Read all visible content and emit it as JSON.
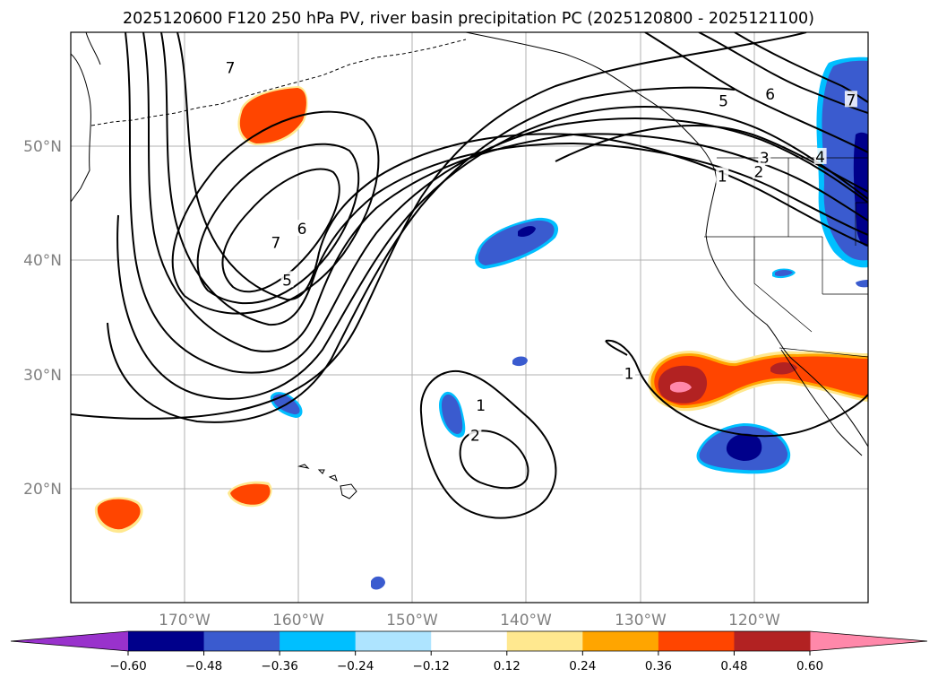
{
  "title": "2025120600 F120 250 hPa PV, river basin precipitation PC (2025120800 - 2025121100)",
  "map": {
    "lon_range": [
      -180,
      -110
    ],
    "lat_range": [
      10,
      60
    ],
    "lat_labels": [
      {
        "lat": 50,
        "text": "50°N"
      },
      {
        "lat": 40,
        "text": "40°N"
      },
      {
        "lat": 30,
        "text": "30°N"
      },
      {
        "lat": 20,
        "text": "20°N"
      }
    ],
    "lon_labels": [
      {
        "lon": -170,
        "text": "170°W"
      },
      {
        "lon": -160,
        "text": "160°W"
      },
      {
        "lon": -150,
        "text": "150°W"
      },
      {
        "lon": -140,
        "text": "140°W"
      },
      {
        "lon": -130,
        "text": "130°W"
      },
      {
        "lon": -120,
        "text": "120°W"
      }
    ],
    "gridlines": true,
    "contour_variable": "250 hPa PV",
    "contour_labels": [
      {
        "text": "7",
        "lon": -162.0,
        "lat": 41.5
      },
      {
        "text": "6",
        "lon": -159.7,
        "lat": 42.7
      },
      {
        "text": "5",
        "lon": -161.0,
        "lat": 38.2
      },
      {
        "text": "1",
        "lon": -144.0,
        "lat": 27.2
      },
      {
        "text": "2",
        "lon": -144.5,
        "lat": 24.6
      },
      {
        "text": "1",
        "lon": -131.0,
        "lat": 30.0
      },
      {
        "text": "7",
        "lon": -166.0,
        "lat": 56.8
      },
      {
        "text": "5",
        "lon": -122.7,
        "lat": 53.9
      },
      {
        "text": "6",
        "lon": -118.6,
        "lat": 54.5
      },
      {
        "text": "7",
        "lon": -111.5,
        "lat": 54.0
      },
      {
        "text": "4",
        "lon": -114.2,
        "lat": 49.0
      },
      {
        "text": "3",
        "lon": -119.1,
        "lat": 48.9
      },
      {
        "text": "2",
        "lon": -119.6,
        "lat": 47.7
      },
      {
        "text": "1",
        "lon": -122.8,
        "lat": 47.3
      }
    ]
  },
  "colorbar": {
    "ticks": [
      "−0.60",
      "−0.48",
      "−0.36",
      "−0.24",
      "−0.12",
      "0.12",
      "0.24",
      "0.36",
      "0.48",
      "0.60"
    ],
    "under_color": "#9932cc",
    "over_color": "#ff88aa",
    "colors": [
      "#00008b",
      "#3a5bcf",
      "#00bfff",
      "#aee4ff",
      "#ffffff",
      "#ffe88f",
      "#ffa500",
      "#ff4500",
      "#b22222",
      "#ff88aa"
    ]
  }
}
